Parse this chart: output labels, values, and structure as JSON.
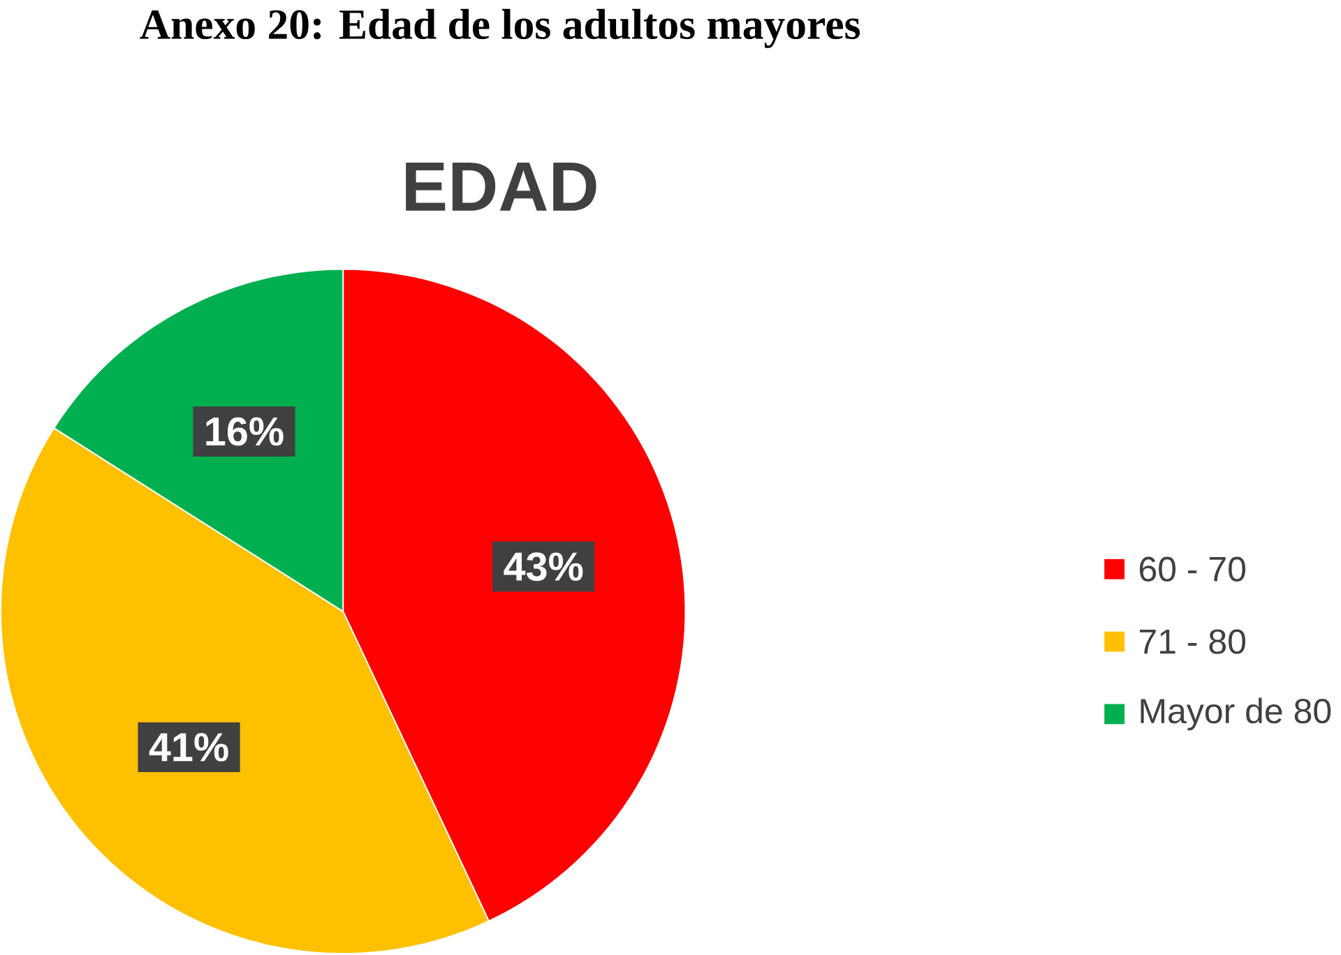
{
  "chart_data": {
    "type": "pie",
    "title": "EDAD",
    "categories": [
      "60 - 70",
      "71 - 80",
      "Mayor de 80"
    ],
    "values": [
      43,
      41,
      16
    ],
    "value_labels": [
      "43%",
      "41%",
      "16%"
    ],
    "colors": [
      "#ff0000",
      "#ffc000",
      "#00b050"
    ],
    "legend": "right",
    "annotations": [
      "Anexo 20: Edad de los adultos mayores"
    ]
  }
}
